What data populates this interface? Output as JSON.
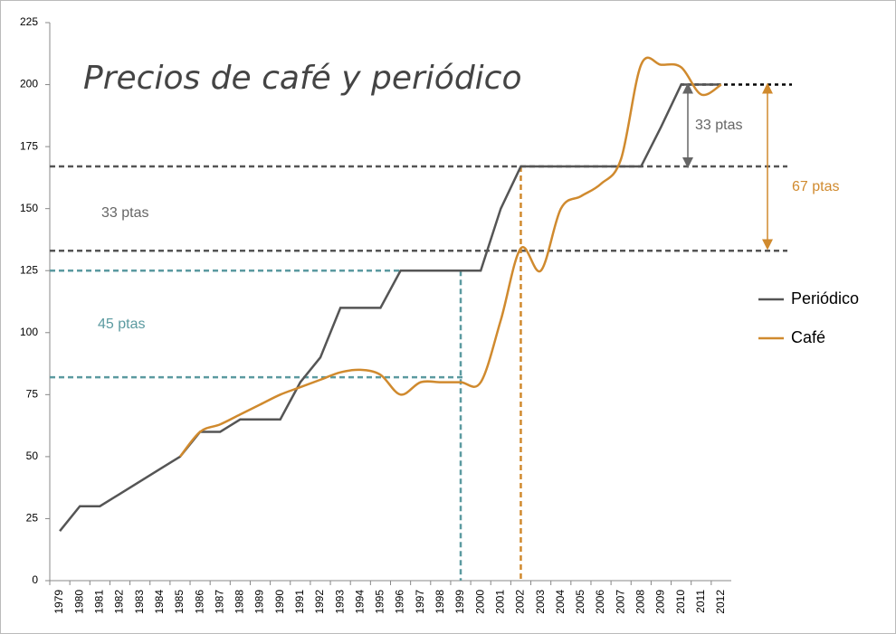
{
  "chart_data": {
    "type": "line",
    "title": "Precios de café y periódico",
    "categories": [
      "1979",
      "1980",
      "1981",
      "1982",
      "1983",
      "1984",
      "1985",
      "1986",
      "1987",
      "1988",
      "1989",
      "1990",
      "1991",
      "1992",
      "1993",
      "1994",
      "1995",
      "1996",
      "1997",
      "1998",
      "1999",
      "2000",
      "2001",
      "2002",
      "2003",
      "2004",
      "2005",
      "2006",
      "2007",
      "2008",
      "2009",
      "2010",
      "2011",
      "2012"
    ],
    "series": [
      {
        "name": "Periódico",
        "color": "#555555",
        "smooth": false,
        "values": [
          20,
          30,
          30,
          35,
          40,
          45,
          50,
          60,
          60,
          65,
          65,
          65,
          80,
          90,
          110,
          110,
          110,
          125,
          125,
          125,
          125,
          125,
          150,
          167,
          167,
          167,
          167,
          167,
          167,
          167,
          183,
          200,
          200,
          200
        ]
      },
      {
        "name": "Café",
        "color": "#d08a2e",
        "smooth": true,
        "values": [
          null,
          null,
          null,
          null,
          null,
          null,
          50,
          60,
          63,
          67,
          71,
          75,
          78,
          81,
          84,
          85,
          83,
          75,
          80,
          80,
          80,
          80,
          105,
          134,
          125,
          150,
          155,
          160,
          170,
          208,
          208,
          207,
          196,
          200
        ]
      }
    ],
    "ylim": [
      0,
      225
    ],
    "yticks": [
      0,
      25,
      50,
      75,
      100,
      125,
      150,
      175,
      200,
      225
    ],
    "reference_lines": [
      {
        "value": 200,
        "color": "#000000"
      },
      {
        "value": 167,
        "color": "#555555"
      },
      {
        "value": 133,
        "color": "#555555"
      },
      {
        "value": 125,
        "color": "#5b9aa0"
      },
      {
        "value": 82,
        "color": "#5b9aa0"
      }
    ],
    "vertical_lines": [
      {
        "category": "1999",
        "top": 125,
        "color": "#5b9aa0"
      },
      {
        "category": "2002",
        "top": 167,
        "color": "#d08a2e"
      }
    ],
    "annotations": [
      {
        "text": "33 ptas",
        "color": "#666666",
        "from": 200,
        "to": 167
      },
      {
        "text": "67 ptas",
        "color": "#d08a2e",
        "from": 200,
        "to": 134
      },
      {
        "text": "33 ptas",
        "color": "#666666"
      },
      {
        "text": "45 ptas",
        "color": "#5b9aa0"
      }
    ]
  }
}
